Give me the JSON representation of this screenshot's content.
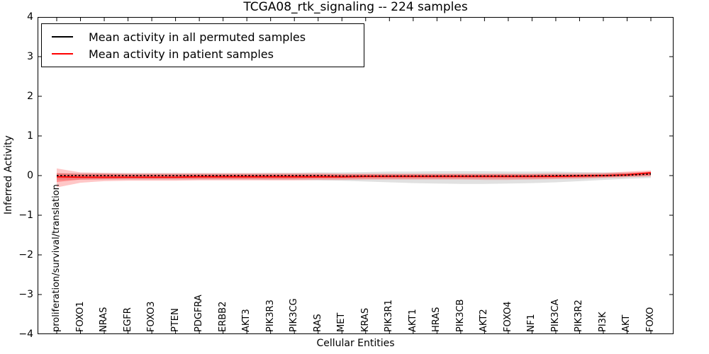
{
  "figure": {
    "title": "TCGA08_rtk_signaling -- 224 samples",
    "xlabel": "Cellular Entities",
    "ylabel": "Inferred Activity"
  },
  "chart_data": {
    "type": "line",
    "title": "TCGA08_rtk_signaling -- 224 samples",
    "xlabel": "Cellular Entities",
    "ylabel": "Inferred Activity",
    "ylim": [
      -4,
      4
    ],
    "ytick_labels": [
      "4",
      "3",
      "2",
      "1",
      "0",
      "−1",
      "−2",
      "−3",
      "−4"
    ],
    "ytick_values": [
      4,
      3,
      2,
      1,
      0,
      -1,
      -2,
      -3,
      -4
    ],
    "grid": false,
    "legend_position": "upper left",
    "categories": [
      "proliferation/survival/translation",
      "FOXO1",
      "NRAS",
      "EGFR",
      "FOXO3",
      "PTEN",
      "PDGFRA",
      "ERBB2",
      "AKT3",
      "PIK3R3",
      "PIK3CG",
      "RAS",
      "MET",
      "KRAS",
      "PIK3R1",
      "AKT1",
      "HRAS",
      "PIK3CB",
      "AKT2",
      "FOXO4",
      "NF1",
      "PIK3CA",
      "PIK3R2",
      "PI3K",
      "AKT",
      "FOXO"
    ],
    "series": [
      {
        "name": "Mean activity in all permuted samples",
        "color": "#000000",
        "line_style": "dashed",
        "values": [
          0,
          0,
          0,
          0,
          0,
          0,
          0,
          0,
          0,
          0,
          0,
          0,
          -0.01,
          -0.01,
          -0.01,
          -0.01,
          -0.01,
          -0.01,
          -0.01,
          -0.01,
          -0.01,
          0,
          0,
          0,
          0.01,
          0.04
        ]
      },
      {
        "name": "Mean activity in patient samples",
        "color": "#ff0000",
        "line_style": "solid",
        "values": [
          -0.03,
          -0.04,
          -0.04,
          -0.04,
          -0.04,
          -0.04,
          -0.03,
          -0.03,
          -0.03,
          -0.03,
          -0.03,
          -0.03,
          -0.03,
          -0.02,
          -0.02,
          -0.02,
          -0.02,
          -0.02,
          -0.02,
          -0.02,
          -0.02,
          -0.02,
          -0.01,
          0,
          0.02,
          0.07
        ]
      }
    ],
    "bands": [
      {
        "name": "permuted-samples-spread",
        "color": "#aaaaaa",
        "opacity": 0.35,
        "upper": [
          0.06,
          0.06,
          0.06,
          0.06,
          0.06,
          0.06,
          0.06,
          0.06,
          0.06,
          0.07,
          0.07,
          0.08,
          0.08,
          0.09,
          0.1,
          0.1,
          0.11,
          0.11,
          0.11,
          0.1,
          0.1,
          0.1,
          0.09,
          0.08,
          0.07,
          0.06
        ],
        "lower": [
          -0.1,
          -0.1,
          -0.1,
          -0.1,
          -0.1,
          -0.1,
          -0.1,
          -0.1,
          -0.1,
          -0.11,
          -0.11,
          -0.12,
          -0.13,
          -0.15,
          -0.17,
          -0.19,
          -0.2,
          -0.21,
          -0.21,
          -0.2,
          -0.19,
          -0.17,
          -0.14,
          -0.11,
          -0.08,
          -0.06
        ]
      },
      {
        "name": "patient-samples-spread-outer",
        "color": "#ff0000",
        "opacity": 0.22,
        "upper": [
          0.18,
          0.08,
          0.07,
          0.06,
          0.06,
          0.06,
          0.06,
          0.06,
          0.06,
          0.06,
          0.06,
          0.06,
          0.05,
          0.05,
          0.05,
          0.05,
          0.05,
          0.05,
          0.05,
          0.05,
          0.05,
          0.06,
          0.06,
          0.07,
          0.1,
          0.13
        ],
        "lower": [
          -0.3,
          -0.18,
          -0.14,
          -0.13,
          -0.13,
          -0.13,
          -0.12,
          -0.12,
          -0.12,
          -0.12,
          -0.12,
          -0.11,
          -0.11,
          -0.1,
          -0.1,
          -0.1,
          -0.1,
          -0.1,
          -0.11,
          -0.11,
          -0.1,
          -0.09,
          -0.08,
          -0.06,
          -0.04,
          -0.02
        ],
        "lower2": null
      },
      {
        "name": "patient-samples-spread-inner",
        "color": "#ff0000",
        "opacity": 0.3,
        "upper": [
          0.06,
          0.04,
          0.04,
          0.03,
          0.03,
          0.03,
          0.03,
          0.03,
          0.03,
          0.03,
          0.03,
          0.03,
          0.03,
          0.03,
          0.03,
          0.03,
          0.03,
          0.03,
          0.03,
          0.03,
          0.03,
          0.03,
          0.03,
          0.04,
          0.07,
          0.1
        ],
        "lower": [
          -0.16,
          -0.1,
          -0.09,
          -0.08,
          -0.08,
          -0.08,
          -0.08,
          -0.08,
          -0.08,
          -0.08,
          -0.08,
          -0.07,
          -0.07,
          -0.07,
          -0.07,
          -0.07,
          -0.07,
          -0.07,
          -0.07,
          -0.07,
          -0.07,
          -0.06,
          -0.05,
          -0.04,
          -0.02,
          0
        ]
      }
    ],
    "legend": {
      "entries": [
        "Mean activity in all permuted samples",
        "Mean activity in patient samples"
      ],
      "colors": [
        "#000000",
        "#ff0000"
      ]
    }
  }
}
